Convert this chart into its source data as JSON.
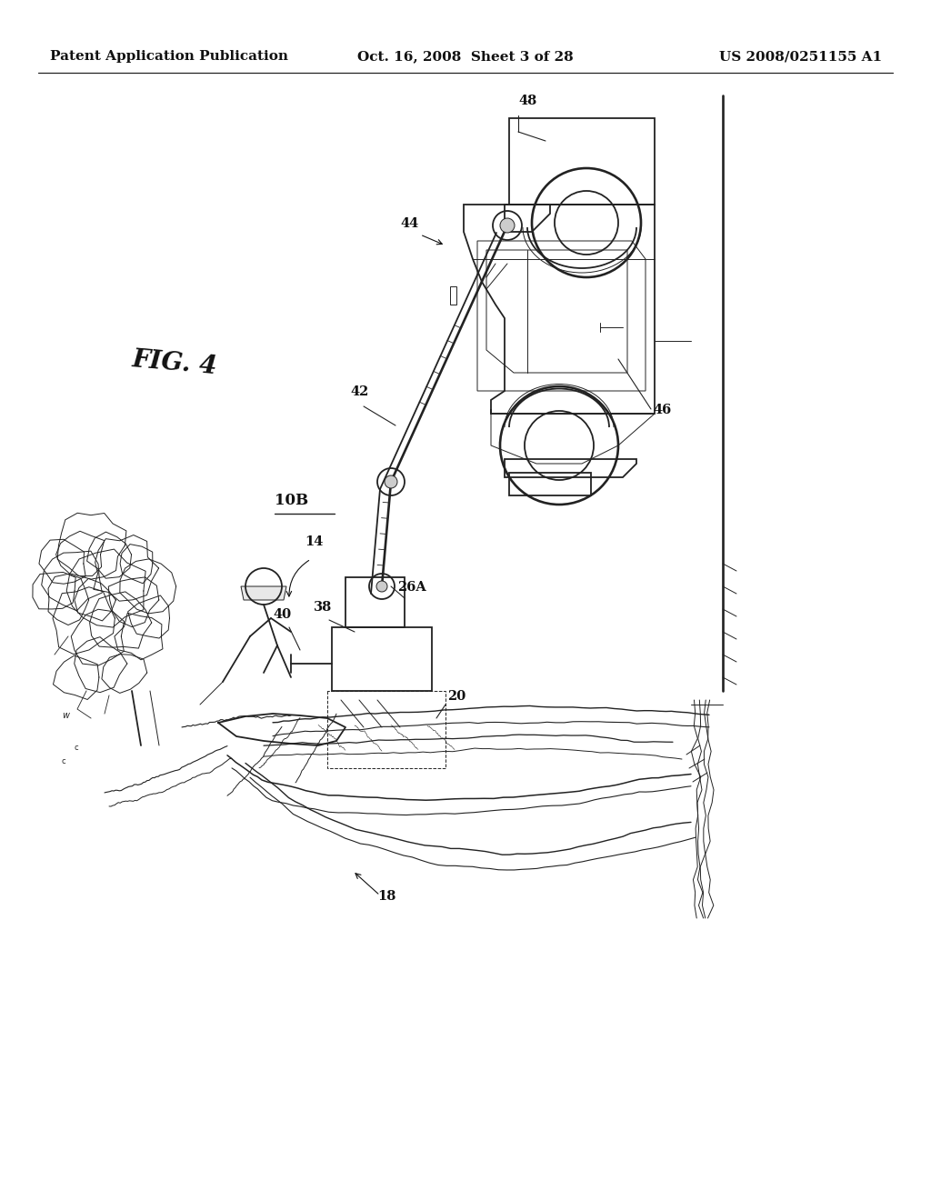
{
  "bg_color": "#ffffff",
  "line_color": "#222222",
  "text_color": "#111111",
  "header_left": "Patent Application Publication",
  "header_center": "Oct. 16, 2008  Sheet 3 of 28",
  "header_right": "US 2008/0251155 A1",
  "header_fontsize": 11.5,
  "fig_label": "FIG. 4",
  "lw_main": 1.3,
  "lw_thin": 0.7,
  "lw_thick": 1.9
}
